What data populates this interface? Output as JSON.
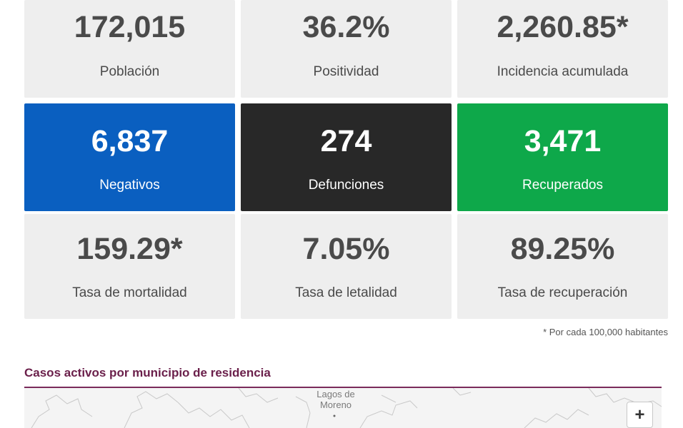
{
  "stats": [
    {
      "value": "172,015",
      "label": "Población"
    },
    {
      "value": "36.2%",
      "label": "Positividad"
    },
    {
      "value": "2,260.85*",
      "label": "Incidencia acumulada"
    },
    {
      "value": "6,837",
      "label": "Negativos",
      "color": "#0a5fc0"
    },
    {
      "value": "274",
      "label": "Defunciones",
      "color": "#282828"
    },
    {
      "value": "3,471",
      "label": "Recuperados",
      "color": "#0ea84a"
    },
    {
      "value": "159.29*",
      "label": "Tasa de mortalidad"
    },
    {
      "value": "7.05%",
      "label": "Tasa de letalidad"
    },
    {
      "value": "89.25%",
      "label": "Tasa de recuperación"
    }
  ],
  "footnote": "* Por cada 100,000 habitantes",
  "map_section": {
    "title": "Casos activos por municipio de residencia",
    "place_label_line1": "Lagos de",
    "place_label_line2": "Moreno",
    "zoom_in_label": "+"
  }
}
